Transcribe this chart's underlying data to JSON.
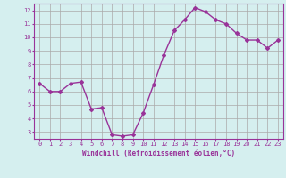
{
  "x": [
    0,
    1,
    2,
    3,
    4,
    5,
    6,
    7,
    8,
    9,
    10,
    11,
    12,
    13,
    14,
    15,
    16,
    17,
    18,
    19,
    20,
    21,
    22,
    23
  ],
  "y": [
    6.6,
    6.0,
    6.0,
    6.6,
    6.7,
    4.7,
    4.8,
    2.8,
    2.7,
    2.8,
    4.4,
    6.5,
    8.7,
    10.5,
    11.3,
    12.2,
    11.9,
    11.3,
    11.0,
    10.3,
    9.8,
    9.8,
    9.2,
    9.8
  ],
  "xlabel": "Windchill (Refroidissement éolien,°C)",
  "line_color": "#993399",
  "marker": "D",
  "markersize": 2,
  "linewidth": 1.0,
  "bg_color": "#d5efef",
  "grid_color": "#aaaaaa",
  "axes_color": "#993399",
  "xlim": [
    -0.5,
    23.5
  ],
  "ylim": [
    2.5,
    12.5
  ],
  "xticks": [
    0,
    1,
    2,
    3,
    4,
    5,
    6,
    7,
    8,
    9,
    10,
    11,
    12,
    13,
    14,
    15,
    16,
    17,
    18,
    19,
    20,
    21,
    22,
    23
  ],
  "yticks": [
    3,
    4,
    5,
    6,
    7,
    8,
    9,
    10,
    11,
    12
  ]
}
